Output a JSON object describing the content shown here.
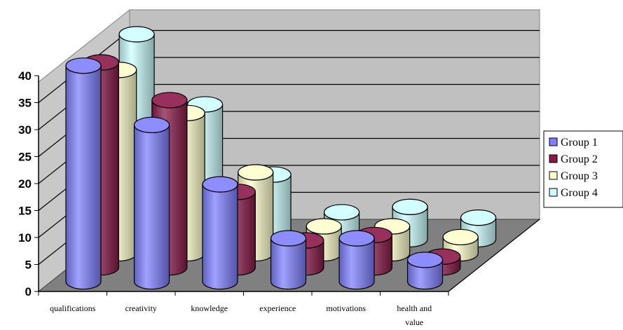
{
  "chart_data": {
    "type": "bar",
    "title": "",
    "xlabel": "",
    "ylabel": "",
    "ylim": [
      0,
      40
    ],
    "yticks": [
      "0",
      "5",
      "10",
      "15",
      "20",
      "25",
      "30",
      "35",
      "40"
    ],
    "grid": true,
    "legend_position": "right",
    "categories": [
      [
        "qualifications"
      ],
      [
        "creativity"
      ],
      [
        "knowledge"
      ],
      [
        "experience"
      ],
      [
        "motivations"
      ],
      [
        "health and",
        "value"
      ]
    ],
    "series": [
      {
        "name": "Group 1",
        "color": "#8080ff",
        "values": [
          40,
          29,
          18,
          8,
          8,
          4
        ]
      },
      {
        "name": "Group 2",
        "color": "#8b1a4a",
        "values": [
          38,
          31,
          14,
          5,
          6,
          2
        ]
      },
      {
        "name": "Group 3",
        "color": "#ffffcc",
        "values": [
          34,
          26,
          15,
          5,
          5,
          3
        ]
      },
      {
        "name": "Group 4",
        "color": "#ccffff",
        "values": [
          38,
          25,
          12,
          5,
          6,
          4
        ]
      }
    ]
  }
}
